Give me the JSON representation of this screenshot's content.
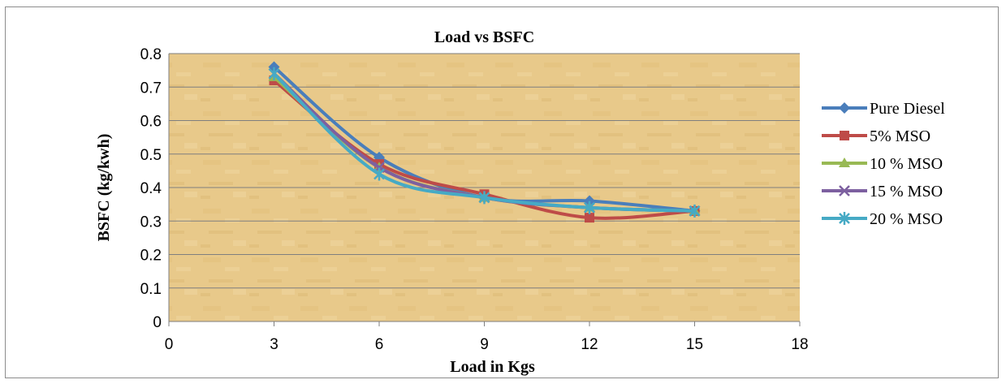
{
  "chart_data": {
    "type": "line",
    "title": "Load vs BSFC",
    "xlabel": "Load in Kgs",
    "ylabel": "BSFC  (kg/kwh)",
    "xlim": [
      0,
      18
    ],
    "ylim": [
      0,
      0.8
    ],
    "xticks": [
      0,
      3,
      6,
      9,
      12,
      15,
      18
    ],
    "yticks": [
      0,
      0.1,
      0.2,
      0.3,
      0.4,
      0.5,
      0.6,
      0.7,
      0.8
    ],
    "ytick_labels": [
      "0",
      "0.1",
      "0.2",
      "0.3",
      "0.4",
      "0.5",
      "0.6",
      "0.7",
      "0.8"
    ],
    "grid": "horizontal",
    "legend": "right",
    "plot_background": "#E8C98A",
    "x": [
      3,
      6,
      9,
      12,
      15
    ],
    "series": [
      {
        "name": "Pure Diesel",
        "values": [
          0.76,
          0.49,
          0.37,
          0.36,
          0.33
        ],
        "color": "#4A7EBB",
        "marker": "diamond"
      },
      {
        "name": "5% MSO",
        "values": [
          0.72,
          0.47,
          0.38,
          0.31,
          0.33
        ],
        "color": "#BE4B48",
        "marker": "square"
      },
      {
        "name": "10 % MSO",
        "values": [
          0.73,
          0.46,
          0.37,
          0.34,
          0.33
        ],
        "color": "#98B954",
        "marker": "triangle"
      },
      {
        "name": "15 % MSO",
        "values": [
          0.74,
          0.46,
          0.37,
          0.34,
          0.33
        ],
        "color": "#7D60A0",
        "marker": "x"
      },
      {
        "name": "20 % MSO",
        "values": [
          0.74,
          0.44,
          0.37,
          0.34,
          0.33
        ],
        "color": "#46AAC5",
        "marker": "star"
      }
    ]
  }
}
